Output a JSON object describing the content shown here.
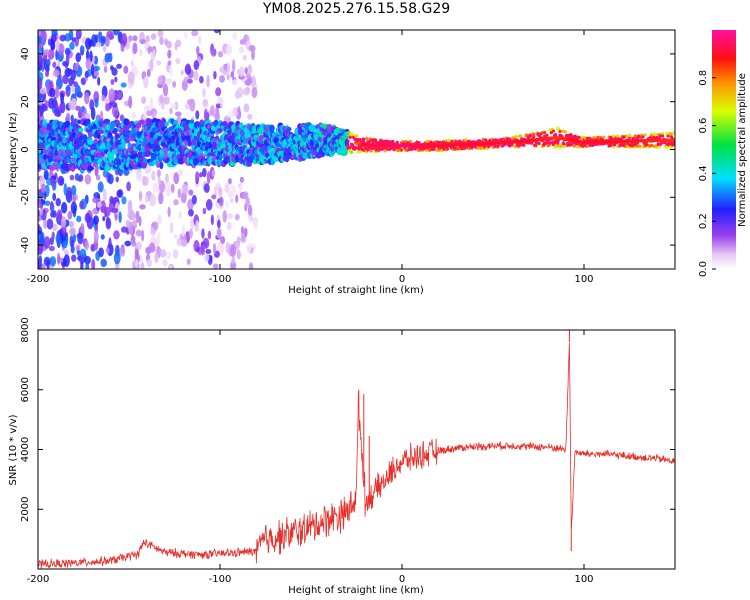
{
  "title": "YM08.2025.276.15.58.G29",
  "chart_data": [
    {
      "type": "heatmap",
      "name": "spectrogram",
      "xlabel": "Height of straight line (km)",
      "ylabel": "Frequency (Hz)",
      "xlim": [
        -200,
        150
      ],
      "ylim": [
        -50,
        50
      ],
      "xticks": [
        -200,
        -100,
        0,
        100
      ],
      "yticks": [
        -40,
        -20,
        0,
        20,
        40
      ],
      "colorbar": {
        "label": "Normalized spectral amplitude",
        "range": [
          0,
          1
        ],
        "ticks": [
          "0.0",
          "0.2",
          "0.4",
          "0.6",
          "0.8"
        ],
        "colormap": "rainbow (white-violet-blue-cyan-green-yellow-red-magenta)"
      },
      "ridge": [
        {
          "h": -155,
          "f": 2,
          "amp": 0.5,
          "spread": 10
        },
        {
          "h": -120,
          "f": 3,
          "amp": 0.5,
          "spread": 9
        },
        {
          "h": -80,
          "f": 2,
          "amp": 0.55,
          "spread": 8
        },
        {
          "h": -40,
          "f": 4,
          "amp": 0.55,
          "spread": 6
        },
        {
          "h": -20,
          "f": 2,
          "amp": 0.9,
          "spread": 3
        },
        {
          "h": 0,
          "f": 1.5,
          "amp": 0.95,
          "spread": 2
        },
        {
          "h": 20,
          "f": 1.5,
          "amp": 0.9,
          "spread": 2
        },
        {
          "h": 60,
          "f": 3,
          "amp": 0.9,
          "spread": 2
        },
        {
          "h": 85,
          "f": 5,
          "amp": 0.85,
          "spread": 4
        },
        {
          "h": 100,
          "f": 3,
          "amp": 0.9,
          "spread": 2
        },
        {
          "h": 150,
          "f": 4,
          "amp": 0.85,
          "spread": 3
        }
      ]
    },
    {
      "type": "line",
      "name": "snr",
      "xlabel": "Height of straight line (km)",
      "ylabel": "SNR (10 * v/v)",
      "xlim": [
        -200,
        150
      ],
      "ylim": [
        0,
        8000
      ],
      "xticks": [
        -200,
        -100,
        0,
        100
      ],
      "yticks": [
        2000,
        4000,
        6000,
        8000
      ],
      "color": "#e8302a",
      "series": [
        {
          "name": "SNR",
          "x": [
            -200,
            -180,
            -160,
            -145,
            -142,
            -130,
            -110,
            -90,
            -80,
            -75,
            -70,
            -60,
            -50,
            -40,
            -30,
            -25,
            -24,
            -20,
            -15,
            -10,
            -5,
            0,
            10,
            20,
            30,
            40,
            50,
            60,
            70,
            80,
            85,
            90,
            92,
            93,
            95,
            100,
            110,
            120,
            130,
            140,
            150
          ],
          "y": [
            150,
            200,
            280,
            500,
            900,
            550,
            480,
            550,
            600,
            1000,
            1050,
            1200,
            1400,
            1700,
            1900,
            2500,
            5600,
            2200,
            2600,
            2900,
            3300,
            3600,
            3800,
            3950,
            4050,
            4100,
            4120,
            4130,
            4100,
            4080,
            4050,
            4000,
            7600,
            1200,
            3900,
            3850,
            3850,
            3800,
            3750,
            3700,
            3600
          ]
        }
      ],
      "spikes": [
        {
          "x": -21,
          "y": 5850
        },
        {
          "x": -18,
          "y": 4450
        },
        {
          "x": 92,
          "y": 8000
        },
        {
          "x": 93,
          "y": 600
        }
      ]
    }
  ]
}
